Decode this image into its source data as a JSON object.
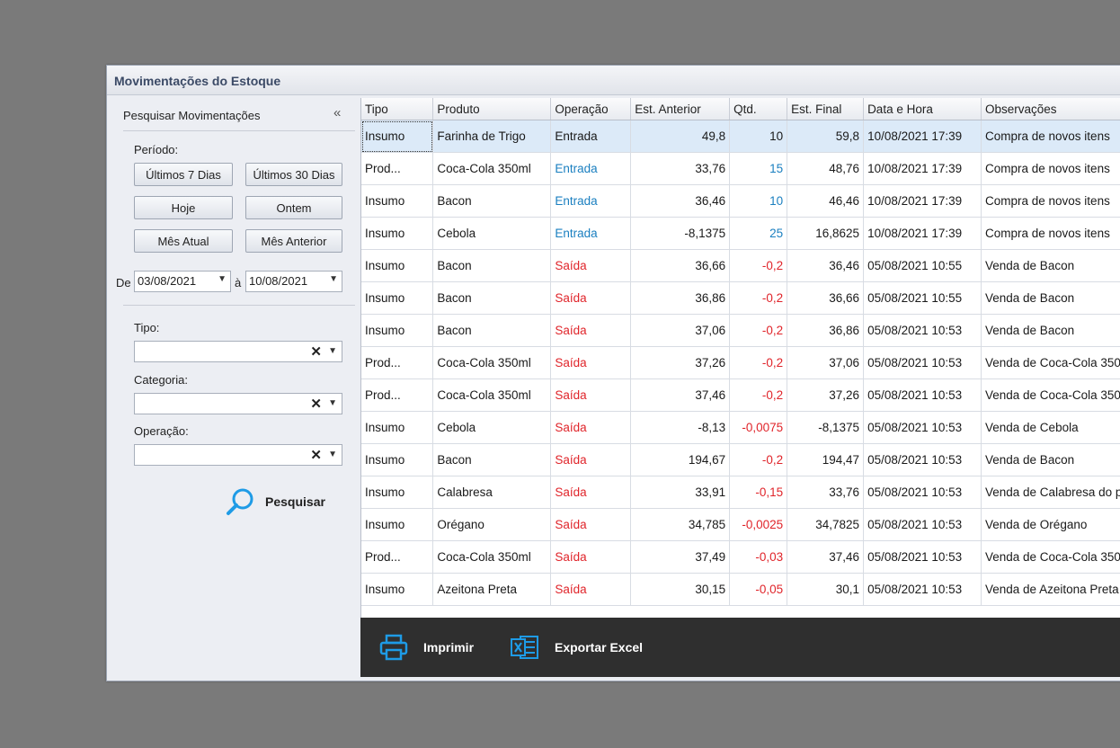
{
  "window": {
    "title": "Movimentações do Estoque"
  },
  "filters": {
    "panel_title": "Pesquisar Movimentações",
    "collapse_glyph": "«",
    "period_label": "Período:",
    "quick_buttons": [
      "Últimos 7 Dias",
      "Últimos 30 Dias",
      "Hoje",
      "Ontem",
      "Mês Atual",
      "Mês Anterior"
    ],
    "date_from_label": "De",
    "date_from": "03/08/2021",
    "date_to_label": "à",
    "date_to": "10/08/2021",
    "tipo_label": "Tipo:",
    "categoria_label": "Categoria:",
    "operacao_label": "Operação:",
    "tipo_value": "",
    "categoria_value": "",
    "operacao_value": "",
    "search_label": "Pesquisar"
  },
  "grid": {
    "columns": [
      "Tipo",
      "Produto",
      "Operação",
      "Est. Anterior",
      "Qtd.",
      "Est. Final",
      "Data e Hora",
      "Observações"
    ],
    "rows": [
      {
        "tipo": "Insumo",
        "produto": "Farinha de Trigo",
        "operacao": "Entrada",
        "est_anterior": "49,8",
        "qtd": "10",
        "est_final": "59,8",
        "data_hora": "10/08/2021 17:39",
        "obs": "Compra de novos itens",
        "selected": true
      },
      {
        "tipo": "Prod...",
        "produto": "Coca-Cola 350ml",
        "operacao": "Entrada",
        "est_anterior": "33,76",
        "qtd": "15",
        "est_final": "48,76",
        "data_hora": "10/08/2021 17:39",
        "obs": "Compra de novos itens"
      },
      {
        "tipo": "Insumo",
        "produto": "Bacon",
        "operacao": "Entrada",
        "est_anterior": "36,46",
        "qtd": "10",
        "est_final": "46,46",
        "data_hora": "10/08/2021 17:39",
        "obs": "Compra de novos itens"
      },
      {
        "tipo": "Insumo",
        "produto": "Cebola",
        "operacao": "Entrada",
        "est_anterior": "-8,1375",
        "qtd": "25",
        "est_final": "16,8625",
        "data_hora": "10/08/2021 17:39",
        "obs": "Compra de novos itens"
      },
      {
        "tipo": "Insumo",
        "produto": "Bacon",
        "operacao": "Saída",
        "est_anterior": "36,66",
        "qtd": "-0,2",
        "est_final": "36,46",
        "data_hora": "05/08/2021 10:55",
        "obs": "Venda de Bacon"
      },
      {
        "tipo": "Insumo",
        "produto": "Bacon",
        "operacao": "Saída",
        "est_anterior": "36,86",
        "qtd": "-0,2",
        "est_final": "36,66",
        "data_hora": "05/08/2021 10:55",
        "obs": "Venda de Bacon"
      },
      {
        "tipo": "Insumo",
        "produto": "Bacon",
        "operacao": "Saída",
        "est_anterior": "37,06",
        "qtd": "-0,2",
        "est_final": "36,86",
        "data_hora": "05/08/2021 10:53",
        "obs": "Venda de Bacon"
      },
      {
        "tipo": "Prod...",
        "produto": "Coca-Cola 350ml",
        "operacao": "Saída",
        "est_anterior": "37,26",
        "qtd": "-0,2",
        "est_final": "37,06",
        "data_hora": "05/08/2021 10:53",
        "obs": "Venda de Coca-Cola 350"
      },
      {
        "tipo": "Prod...",
        "produto": "Coca-Cola 350ml",
        "operacao": "Saída",
        "est_anterior": "37,46",
        "qtd": "-0,2",
        "est_final": "37,26",
        "data_hora": "05/08/2021 10:53",
        "obs": "Venda de Coca-Cola 350"
      },
      {
        "tipo": "Insumo",
        "produto": "Cebola",
        "operacao": "Saída",
        "est_anterior": "-8,13",
        "qtd": "-0,0075",
        "est_final": "-8,1375",
        "data_hora": "05/08/2021 10:53",
        "obs": "Venda de Cebola"
      },
      {
        "tipo": "Insumo",
        "produto": "Bacon",
        "operacao": "Saída",
        "est_anterior": "194,67",
        "qtd": "-0,2",
        "est_final": "194,47",
        "data_hora": "05/08/2021 10:53",
        "obs": "Venda de Bacon"
      },
      {
        "tipo": "Insumo",
        "produto": "Calabresa",
        "operacao": "Saída",
        "est_anterior": "33,91",
        "qtd": "-0,15",
        "est_final": "33,76",
        "data_hora": "05/08/2021 10:53",
        "obs": "Venda de Calabresa do p"
      },
      {
        "tipo": "Insumo",
        "produto": "Orégano",
        "operacao": "Saída",
        "est_anterior": "34,785",
        "qtd": "-0,0025",
        "est_final": "34,7825",
        "data_hora": "05/08/2021 10:53",
        "obs": "Venda de Orégano"
      },
      {
        "tipo": "Prod...",
        "produto": "Coca-Cola 350ml",
        "operacao": "Saída",
        "est_anterior": "37,49",
        "qtd": "-0,03",
        "est_final": "37,46",
        "data_hora": "05/08/2021 10:53",
        "obs": "Venda de Coca-Cola 350"
      },
      {
        "tipo": "Insumo",
        "produto": "Azeitona Preta",
        "operacao": "Saída",
        "est_anterior": "30,15",
        "qtd": "-0,05",
        "est_final": "30,1",
        "data_hora": "05/08/2021 10:53",
        "obs": "Venda de Azeitona Preta"
      }
    ]
  },
  "footer": {
    "print_label": "Imprimir",
    "excel_label": "Exportar Excel"
  },
  "colors": {
    "entrada": "#1a7fc0",
    "saida": "#e0242a",
    "icon_blue": "#1e9be6",
    "footer_bg": "#2f2f2f"
  }
}
